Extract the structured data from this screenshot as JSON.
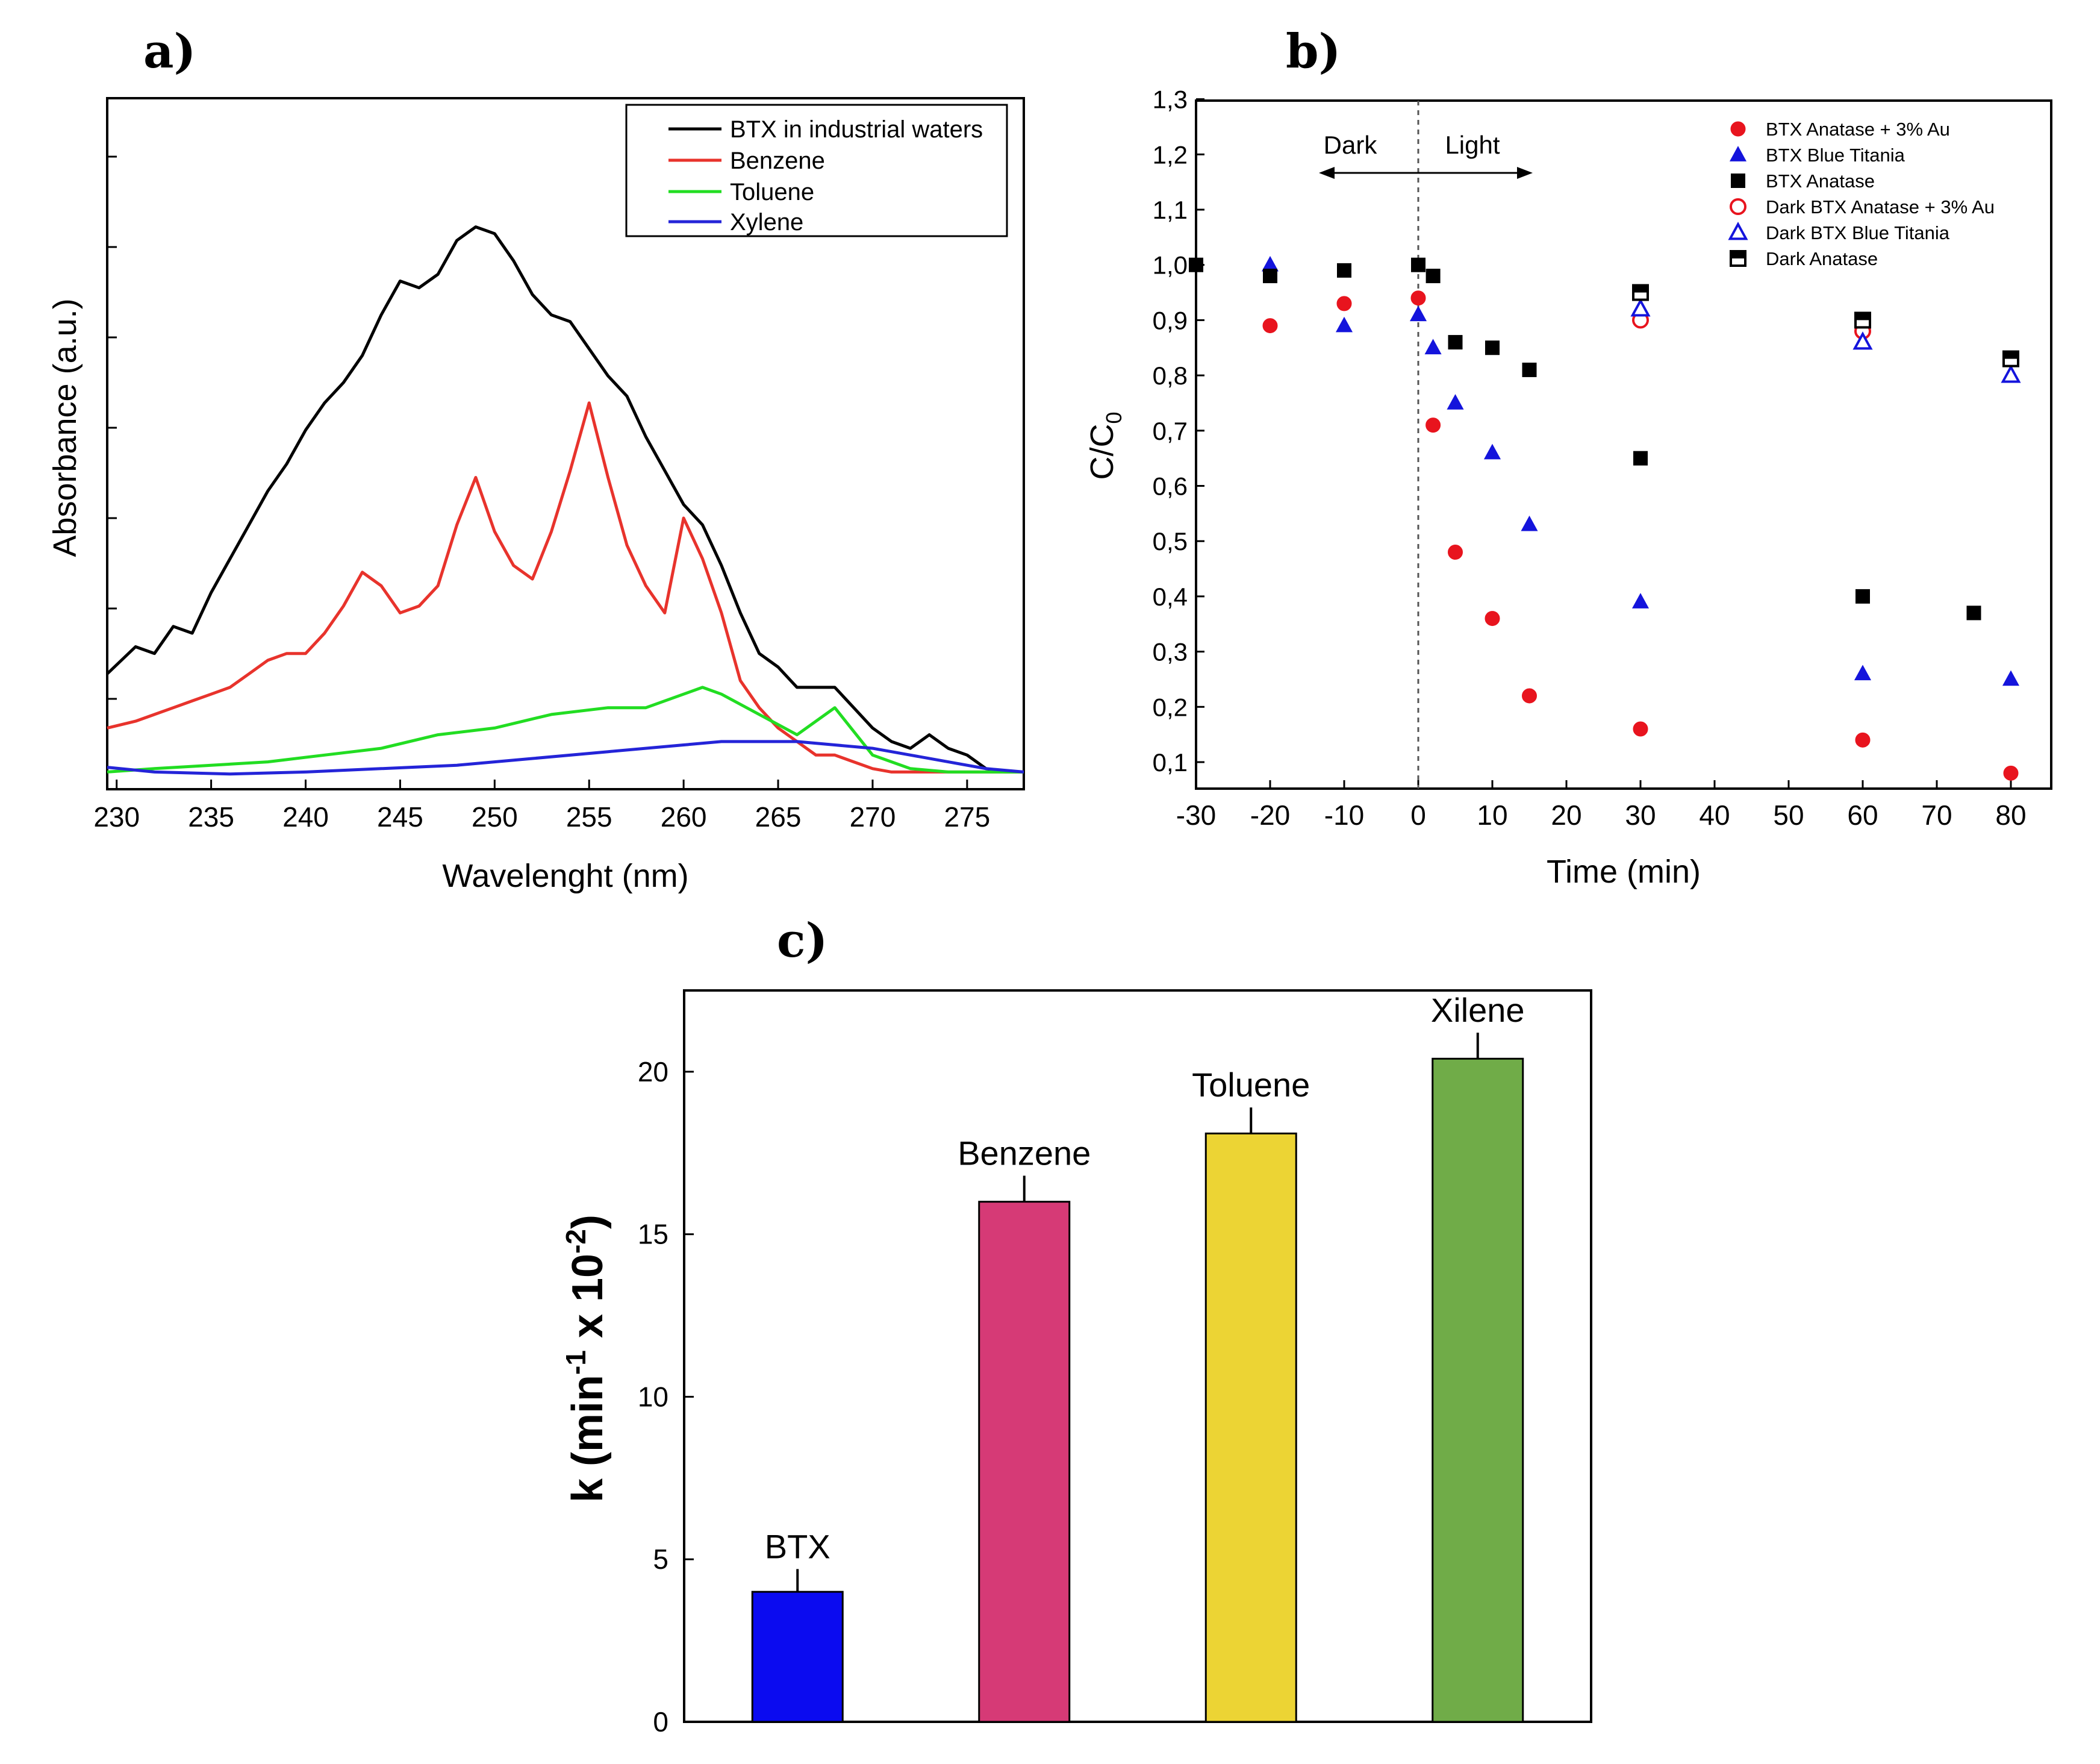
{
  "chart_data": [
    {
      "panel": "a)",
      "type": "line",
      "xlabel": "Wavelenght (nm)",
      "ylabel": "Absorbance (a.u.)",
      "xlim": [
        229.5,
        278
      ],
      "ylim": [
        0,
        1
      ],
      "xticks": [
        230,
        235,
        240,
        245,
        250,
        255,
        260,
        265,
        270,
        275
      ],
      "legend_position": "top-right",
      "series": [
        {
          "name": "BTX in industrial waters",
          "color": "#000000",
          "x": [
            229.5,
            231,
            232,
            233,
            234,
            235,
            236,
            237,
            238,
            239,
            240,
            241,
            242,
            243,
            244,
            245,
            246,
            247,
            248,
            249,
            250,
            251,
            252,
            253,
            254,
            255,
            256,
            257,
            258,
            259,
            260,
            261,
            262,
            263,
            264,
            265,
            266,
            267,
            268,
            269,
            270,
            271,
            272,
            273,
            274,
            275,
            276,
            277,
            278
          ],
          "y": [
            0.15,
            0.19,
            0.18,
            0.22,
            0.21,
            0.27,
            0.32,
            0.37,
            0.42,
            0.46,
            0.51,
            0.55,
            0.58,
            0.62,
            0.68,
            0.73,
            0.72,
            0.74,
            0.79,
            0.81,
            0.8,
            0.76,
            0.71,
            0.68,
            0.67,
            0.63,
            0.59,
            0.56,
            0.5,
            0.45,
            0.4,
            0.37,
            0.31,
            0.24,
            0.18,
            0.16,
            0.13,
            0.13,
            0.13,
            0.1,
            0.07,
            0.05,
            0.04,
            0.06,
            0.04,
            0.03,
            0.01,
            0.005,
            0.005
          ]
        },
        {
          "name": "Benzene",
          "color": "#e8332c",
          "x": [
            229.5,
            231,
            232,
            233,
            234,
            235,
            236,
            237,
            238,
            239,
            240,
            241,
            242,
            243,
            244,
            245,
            246,
            247,
            248,
            249,
            250,
            251,
            252,
            253,
            254,
            255,
            256,
            257,
            258,
            259,
            260,
            261,
            262,
            263,
            264,
            265,
            266,
            267,
            268,
            269,
            270,
            271,
            272,
            273,
            274,
            275,
            276,
            277,
            278
          ],
          "y": [
            0.07,
            0.08,
            0.09,
            0.1,
            0.11,
            0.12,
            0.13,
            0.15,
            0.17,
            0.18,
            0.18,
            0.21,
            0.25,
            0.3,
            0.28,
            0.24,
            0.25,
            0.28,
            0.37,
            0.44,
            0.36,
            0.31,
            0.29,
            0.36,
            0.45,
            0.55,
            0.44,
            0.34,
            0.28,
            0.24,
            0.38,
            0.32,
            0.24,
            0.14,
            0.1,
            0.07,
            0.05,
            0.03,
            0.03,
            0.02,
            0.01,
            0.005,
            0.005,
            0.005,
            0.005,
            0.005,
            0.005,
            0.005,
            0.005
          ]
        },
        {
          "name": "Toluene",
          "color": "#22dd22",
          "x": [
            229.5,
            232,
            235,
            238,
            241,
            244,
            247,
            250,
            253,
            256,
            258,
            260,
            261,
            262,
            264,
            266,
            268,
            270,
            272,
            274,
            276,
            278
          ],
          "y": [
            0.005,
            0.01,
            0.015,
            0.02,
            0.03,
            0.04,
            0.06,
            0.07,
            0.09,
            0.1,
            0.1,
            0.12,
            0.13,
            0.12,
            0.09,
            0.06,
            0.1,
            0.03,
            0.01,
            0.005,
            0.005,
            0.005
          ]
        },
        {
          "name": "Xylene",
          "color": "#2424d8",
          "x": [
            229.5,
            232,
            236,
            240,
            244,
            248,
            252,
            256,
            260,
            262,
            264,
            266,
            268,
            270,
            272,
            274,
            276,
            278
          ],
          "y": [
            0.012,
            0.005,
            0.002,
            0.005,
            0.01,
            0.015,
            0.025,
            0.035,
            0.045,
            0.05,
            0.05,
            0.05,
            0.045,
            0.04,
            0.03,
            0.02,
            0.01,
            0.005
          ]
        }
      ]
    },
    {
      "panel": "b)",
      "type": "scatter",
      "xlabel": "Time (min)",
      "ylabel_main": "C/C",
      "ylabel_sub": "0",
      "xlim": [
        -30,
        85
      ],
      "ylim": [
        0.05,
        1.3
      ],
      "xticks": [
        "-30",
        "-20",
        "-10",
        "0",
        "10",
        "20",
        "30",
        "40",
        "50",
        "60",
        "70",
        "80"
      ],
      "yticks": [
        "0,1",
        "0,2",
        "0,3",
        "0,4",
        "0,5",
        "0,6",
        "0,7",
        "0,8",
        "0,9",
        "1,0",
        "1,1",
        "1,2",
        "1,3"
      ],
      "annotations": {
        "dark": "Dark",
        "light": "Light"
      },
      "legend_position": "top-right",
      "series": [
        {
          "name": "BTX Anatase + 3% Au",
          "color": "#e8141e",
          "marker": "circle",
          "filled": true,
          "x": [
            -20,
            -10,
            0,
            2,
            5,
            10,
            15,
            30,
            60,
            80
          ],
          "y": [
            0.89,
            0.93,
            0.94,
            0.71,
            0.48,
            0.36,
            0.22,
            0.16,
            0.14,
            0.08
          ]
        },
        {
          "name": "BTX Blue Titania",
          "color": "#1414dc",
          "marker": "triangle",
          "filled": true,
          "x": [
            -20,
            -10,
            0,
            2,
            5,
            10,
            15,
            30,
            60,
            80
          ],
          "y": [
            1.0,
            0.89,
            0.91,
            0.85,
            0.75,
            0.66,
            0.53,
            0.39,
            0.26,
            0.25
          ]
        },
        {
          "name": "BTX Anatase",
          "color": "#000000",
          "marker": "square",
          "filled": true,
          "x": [
            -30,
            -20,
            -10,
            0,
            2,
            5,
            10,
            15,
            30,
            60,
            75
          ],
          "y": [
            1.0,
            0.98,
            0.99,
            1.0,
            0.98,
            0.86,
            0.85,
            0.81,
            0.65,
            0.4,
            0.37
          ]
        },
        {
          "name": "Dark BTX Anatase + 3% Au",
          "color": "#e8141e",
          "marker": "circle",
          "filled": false,
          "x": [
            30,
            60
          ],
          "y": [
            0.9,
            0.88
          ]
        },
        {
          "name": "Dark BTX Blue Titania",
          "color": "#1414dc",
          "marker": "triangle",
          "filled": false,
          "x": [
            30,
            60,
            80
          ],
          "y": [
            0.92,
            0.86,
            0.8
          ]
        },
        {
          "name": "Dark Anatase",
          "color": "#000000",
          "marker": "square",
          "filled": false,
          "x": [
            30,
            60,
            80
          ],
          "y": [
            0.95,
            0.9,
            0.83
          ]
        }
      ]
    },
    {
      "panel": "c)",
      "type": "bar",
      "ylabel_prefix": "k (min",
      "ylabel_sup1": "-1",
      "ylabel_mid": " x 10",
      "ylabel_sup2": "-2",
      "ylabel_suffix": ")",
      "ylim": [
        0,
        22.5
      ],
      "yticks": [
        0,
        5,
        10,
        15,
        20
      ],
      "categories": [
        "BTX",
        "Benzene",
        "Toluene",
        "Xilene"
      ],
      "values": [
        4.0,
        16.0,
        18.1,
        20.4
      ],
      "errors": [
        0.7,
        0.8,
        0.8,
        0.8
      ],
      "colors": [
        "#0b0bf0",
        "#d63a76",
        "#ecd434",
        "#70ac48"
      ]
    }
  ]
}
